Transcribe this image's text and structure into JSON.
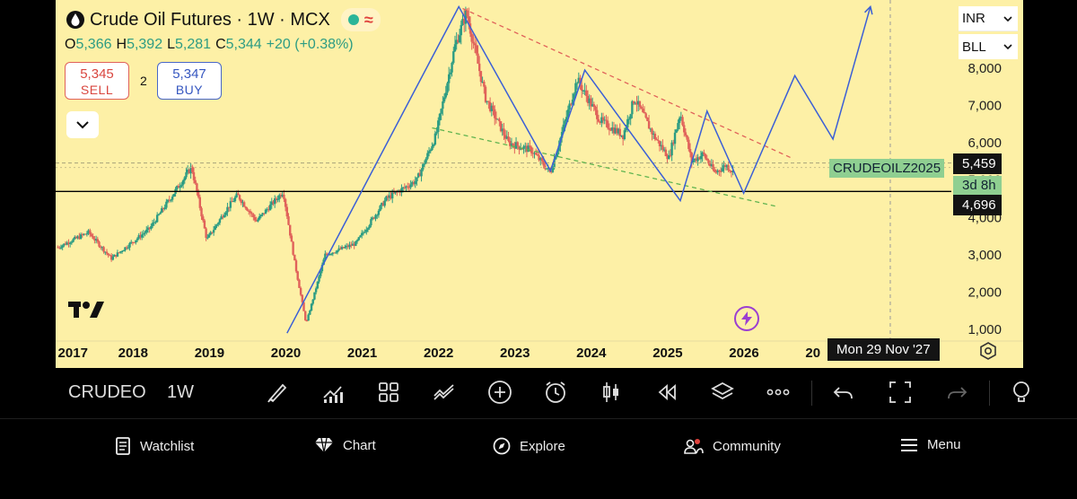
{
  "header": {
    "title": "Crude Oil Futures · 1W · MCX",
    "status_wave": "≈",
    "ohlc": {
      "o_label": "O",
      "o": "5,366",
      "h_label": "H",
      "h": "5,392",
      "l_label": "L",
      "l": "5,281",
      "c_label": "C",
      "c": "5,344",
      "change": "+20 (+0.38%)"
    }
  },
  "trade": {
    "sell_price": "5,345",
    "sell_label": "SELL",
    "spread": "2",
    "buy_price": "5,347",
    "buy_label": "BUY"
  },
  "selectors": {
    "currency": "INR",
    "unit": "BLL"
  },
  "tags": {
    "symbol": "CRUDEOILZ2025",
    "price": "5,459",
    "countdown": "3d 8h",
    "level": "4,696",
    "crosshair_date": "Mon 29 Nov '27"
  },
  "colors": {
    "background": "#fdf0a6",
    "up": "#2c9c83",
    "down": "#e0625a",
    "pattern": "#3b5fd6",
    "resistance": "#e0625a",
    "support": "#5fb34f",
    "price_line": "#000000"
  },
  "chart_data": {
    "type": "candlestick",
    "interval": "1W",
    "x_ticks": [
      "2017",
      "2018",
      "2019",
      "2020",
      "2021",
      "2022",
      "2023",
      "2024",
      "2025",
      "2026",
      "20"
    ],
    "y_ticks": [
      "1,000",
      "2,000",
      "3,000",
      "4,000",
      "5,000",
      "6,000",
      "7,000",
      "8,000"
    ],
    "x_range": [
      2016.97,
      2029.64
    ],
    "y_range": [
      950,
      9800
    ],
    "last_price": 5459,
    "support_level": 4696,
    "price_path": [
      [
        2017.0,
        3200
      ],
      [
        2017.4,
        3600
      ],
      [
        2017.7,
        2900
      ],
      [
        2018.2,
        3700
      ],
      [
        2018.5,
        4600
      ],
      [
        2018.75,
        5350
      ],
      [
        2018.95,
        3400
      ],
      [
        2019.2,
        4200
      ],
      [
        2019.35,
        4600
      ],
      [
        2019.6,
        3900
      ],
      [
        2019.95,
        4700
      ],
      [
        2020.1,
        2800
      ],
      [
        2020.25,
        1150
      ],
      [
        2020.5,
        3000
      ],
      [
        2020.9,
        3300
      ],
      [
        2021.3,
        4500
      ],
      [
        2021.7,
        5000
      ],
      [
        2021.95,
        6200
      ],
      [
        2022.2,
        8600
      ],
      [
        2022.35,
        9500
      ],
      [
        2022.6,
        7200
      ],
      [
        2022.9,
        6000
      ],
      [
        2023.2,
        5800
      ],
      [
        2023.45,
        5200
      ],
      [
        2023.8,
        7700
      ],
      [
        2024.1,
        6600
      ],
      [
        2024.4,
        6200
      ],
      [
        2024.55,
        7200
      ],
      [
        2024.8,
        6200
      ],
      [
        2025.0,
        5600
      ],
      [
        2025.15,
        6800
      ],
      [
        2025.3,
        5500
      ],
      [
        2025.45,
        5700
      ],
      [
        2025.6,
        5200
      ],
      [
        2025.75,
        5400
      ],
      [
        2025.85,
        5200
      ]
    ],
    "wave_path": [
      [
        2020.0,
        900
      ],
      [
        2022.25,
        9650
      ],
      [
        2023.45,
        5250
      ],
      [
        2023.9,
        7950
      ],
      [
        2025.15,
        4450
      ],
      [
        2025.5,
        6850
      ],
      [
        2025.98,
        4650
      ],
      [
        2026.65,
        7800
      ],
      [
        2027.15,
        6100
      ],
      [
        2027.64,
        9650
      ]
    ],
    "resistance_line": [
      [
        2022.3,
        9600
      ],
      [
        2026.6,
        5600
      ]
    ],
    "support_line": [
      [
        2021.9,
        6400
      ],
      [
        2026.4,
        4300
      ]
    ],
    "crosshair_x": 2027.9
  },
  "toolbar": {
    "symbol": "CRUDEO",
    "interval": "1W"
  },
  "nav": {
    "watchlist": "Watchlist",
    "chart": "Chart",
    "explore": "Explore",
    "community": "Community",
    "menu": "Menu"
  }
}
